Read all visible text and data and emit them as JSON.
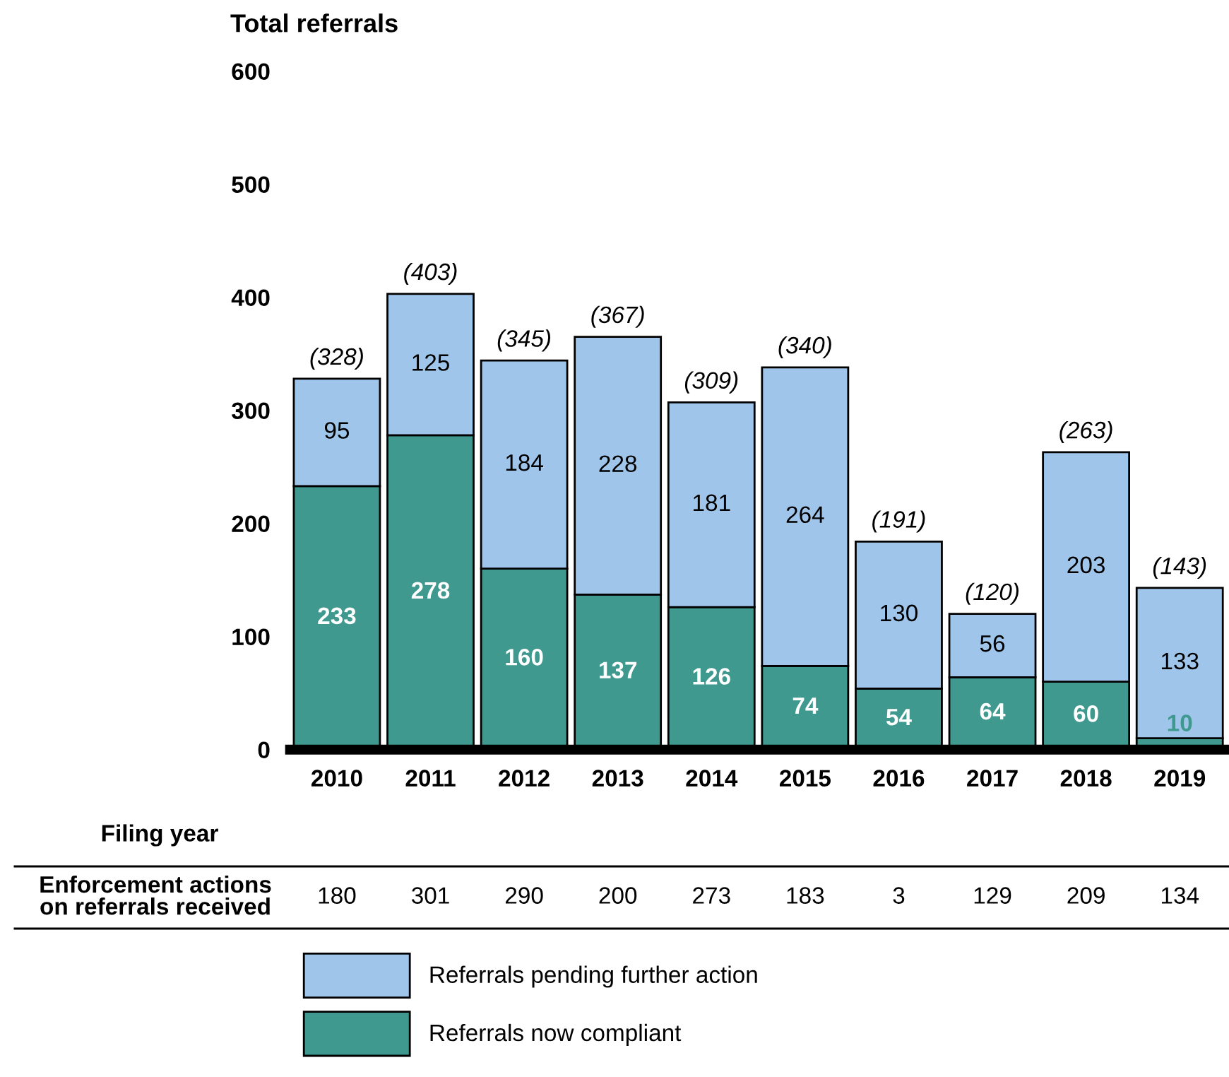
{
  "chart_data": {
    "type": "bar",
    "stacked": true,
    "ylabel": "Total referrals",
    "xlabel": "Filing year",
    "categories": [
      "2010",
      "2011",
      "2012",
      "2013",
      "2014",
      "2015",
      "2016",
      "2017",
      "2018",
      "2019"
    ],
    "series": [
      {
        "name": "Referrals now compliant",
        "color": "#3f998f",
        "values": [
          233,
          278,
          160,
          137,
          126,
          74,
          54,
          64,
          60,
          10
        ]
      },
      {
        "name": "Referrals pending further action",
        "color": "#9fc6ea",
        "values": [
          95,
          125,
          184,
          228,
          181,
          264,
          130,
          56,
          203,
          133
        ]
      }
    ],
    "data_labels": true,
    "ylim": [
      0,
      600
    ],
    "yticks": [
      0,
      100,
      200,
      300,
      400,
      500,
      600
    ],
    "grid": false,
    "legend": "bottom",
    "annotations": [
      "Enforcement actions\non referrals received",
      "180",
      "301",
      "290",
      "200",
      "273",
      "183",
      "3",
      "129",
      "209",
      "134",
      {
        "text": "(328)",
        "x": "2010",
        "y": 328
      },
      {
        "text": "(403)",
        "x": "2011",
        "y": 403
      },
      {
        "text": "(345)",
        "x": "2012",
        "y": 344
      },
      {
        "text": "(367)",
        "x": "2013",
        "y": 365
      },
      {
        "text": "(309)",
        "x": "2014",
        "y": 307
      },
      {
        "text": "(340)",
        "x": "2015",
        "y": 338
      },
      {
        "text": "(191)",
        "x": "2016",
        "y": 184
      },
      {
        "text": "(120)",
        "x": "2017",
        "y": 120
      },
      {
        "text": "(263)",
        "x": "2018",
        "y": 263
      },
      {
        "text": "(143)",
        "x": "2019",
        "y": 143
      }
    ]
  }
}
